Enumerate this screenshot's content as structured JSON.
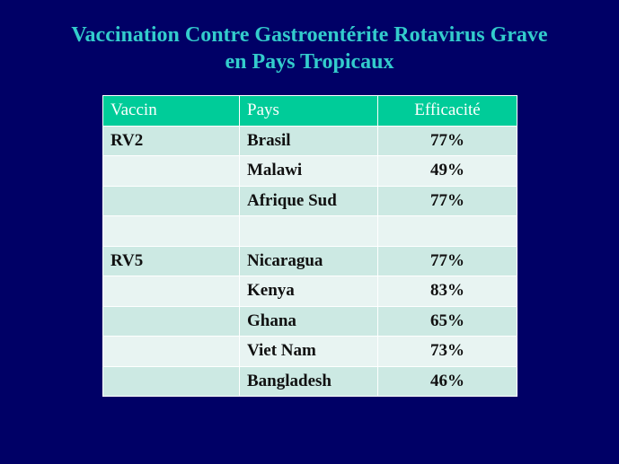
{
  "title": {
    "line1": "Vaccination Contre Gastroentérite Rotavirus Grave",
    "line2": "en Pays Tropicaux"
  },
  "table": {
    "headers": [
      "Vaccin",
      "Pays",
      "Efficacité"
    ],
    "rows": [
      [
        "RV2",
        "Brasil",
        "77%"
      ],
      [
        "",
        "Malawi",
        "49%"
      ],
      [
        "",
        "Afrique Sud",
        "77%"
      ],
      [
        "",
        "",
        ""
      ],
      [
        "RV5",
        "Nicaragua",
        "77%"
      ],
      [
        "",
        "Kenya",
        "83%"
      ],
      [
        "",
        "Ghana",
        "65%"
      ],
      [
        "",
        "Viet Nam",
        "73%"
      ],
      [
        "",
        "Bangladesh",
        "46%"
      ]
    ]
  },
  "colors": {
    "background": "#000066",
    "title": "#33cccc",
    "header": "#00cc99",
    "row_a": "#cce9e3",
    "row_b": "#e8f4f2"
  }
}
